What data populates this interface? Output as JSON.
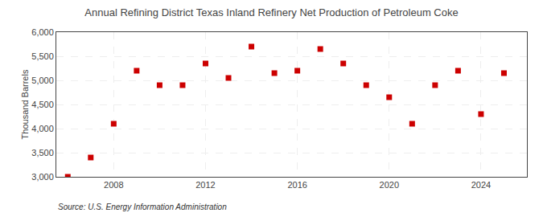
{
  "chart_data": {
    "type": "scatter",
    "title": "Annual Refining District Texas Inland Refinery Net Production of Petroleum Coke",
    "ylabel": "Thousand Barrels",
    "annotations": [
      "Source: U.S. Energy Information Administration"
    ],
    "x": [
      2006,
      2007,
      2008,
      2009,
      2010,
      2011,
      2012,
      2013,
      2014,
      2015,
      2016,
      2017,
      2018,
      2019,
      2020,
      2021,
      2022,
      2023,
      2024,
      2025
    ],
    "values": [
      3000,
      3400,
      4100,
      5200,
      4900,
      4900,
      5350,
      5050,
      5700,
      5150,
      5200,
      5650,
      5350,
      4900,
      4650,
      4100,
      4900,
      5200,
      4300,
      5150
    ],
    "color": "#cc0000",
    "marker": "square",
    "xlim": [
      2005.5,
      2026.0
    ],
    "xticks": [
      2008,
      2012,
      2016,
      2020,
      2024
    ],
    "ylim": [
      3000,
      6000
    ],
    "yticks": [
      {
        "value": 3000,
        "label": "3,000"
      },
      {
        "value": 3500,
        "label": "3,500"
      },
      {
        "value": 4000,
        "label": "4,000"
      },
      {
        "value": 4500,
        "label": "4,500"
      },
      {
        "value": 5000,
        "label": "5,000"
      },
      {
        "value": 5500,
        "label": "5,500"
      },
      {
        "value": 6000,
        "label": "6,000"
      }
    ],
    "grid": true
  }
}
